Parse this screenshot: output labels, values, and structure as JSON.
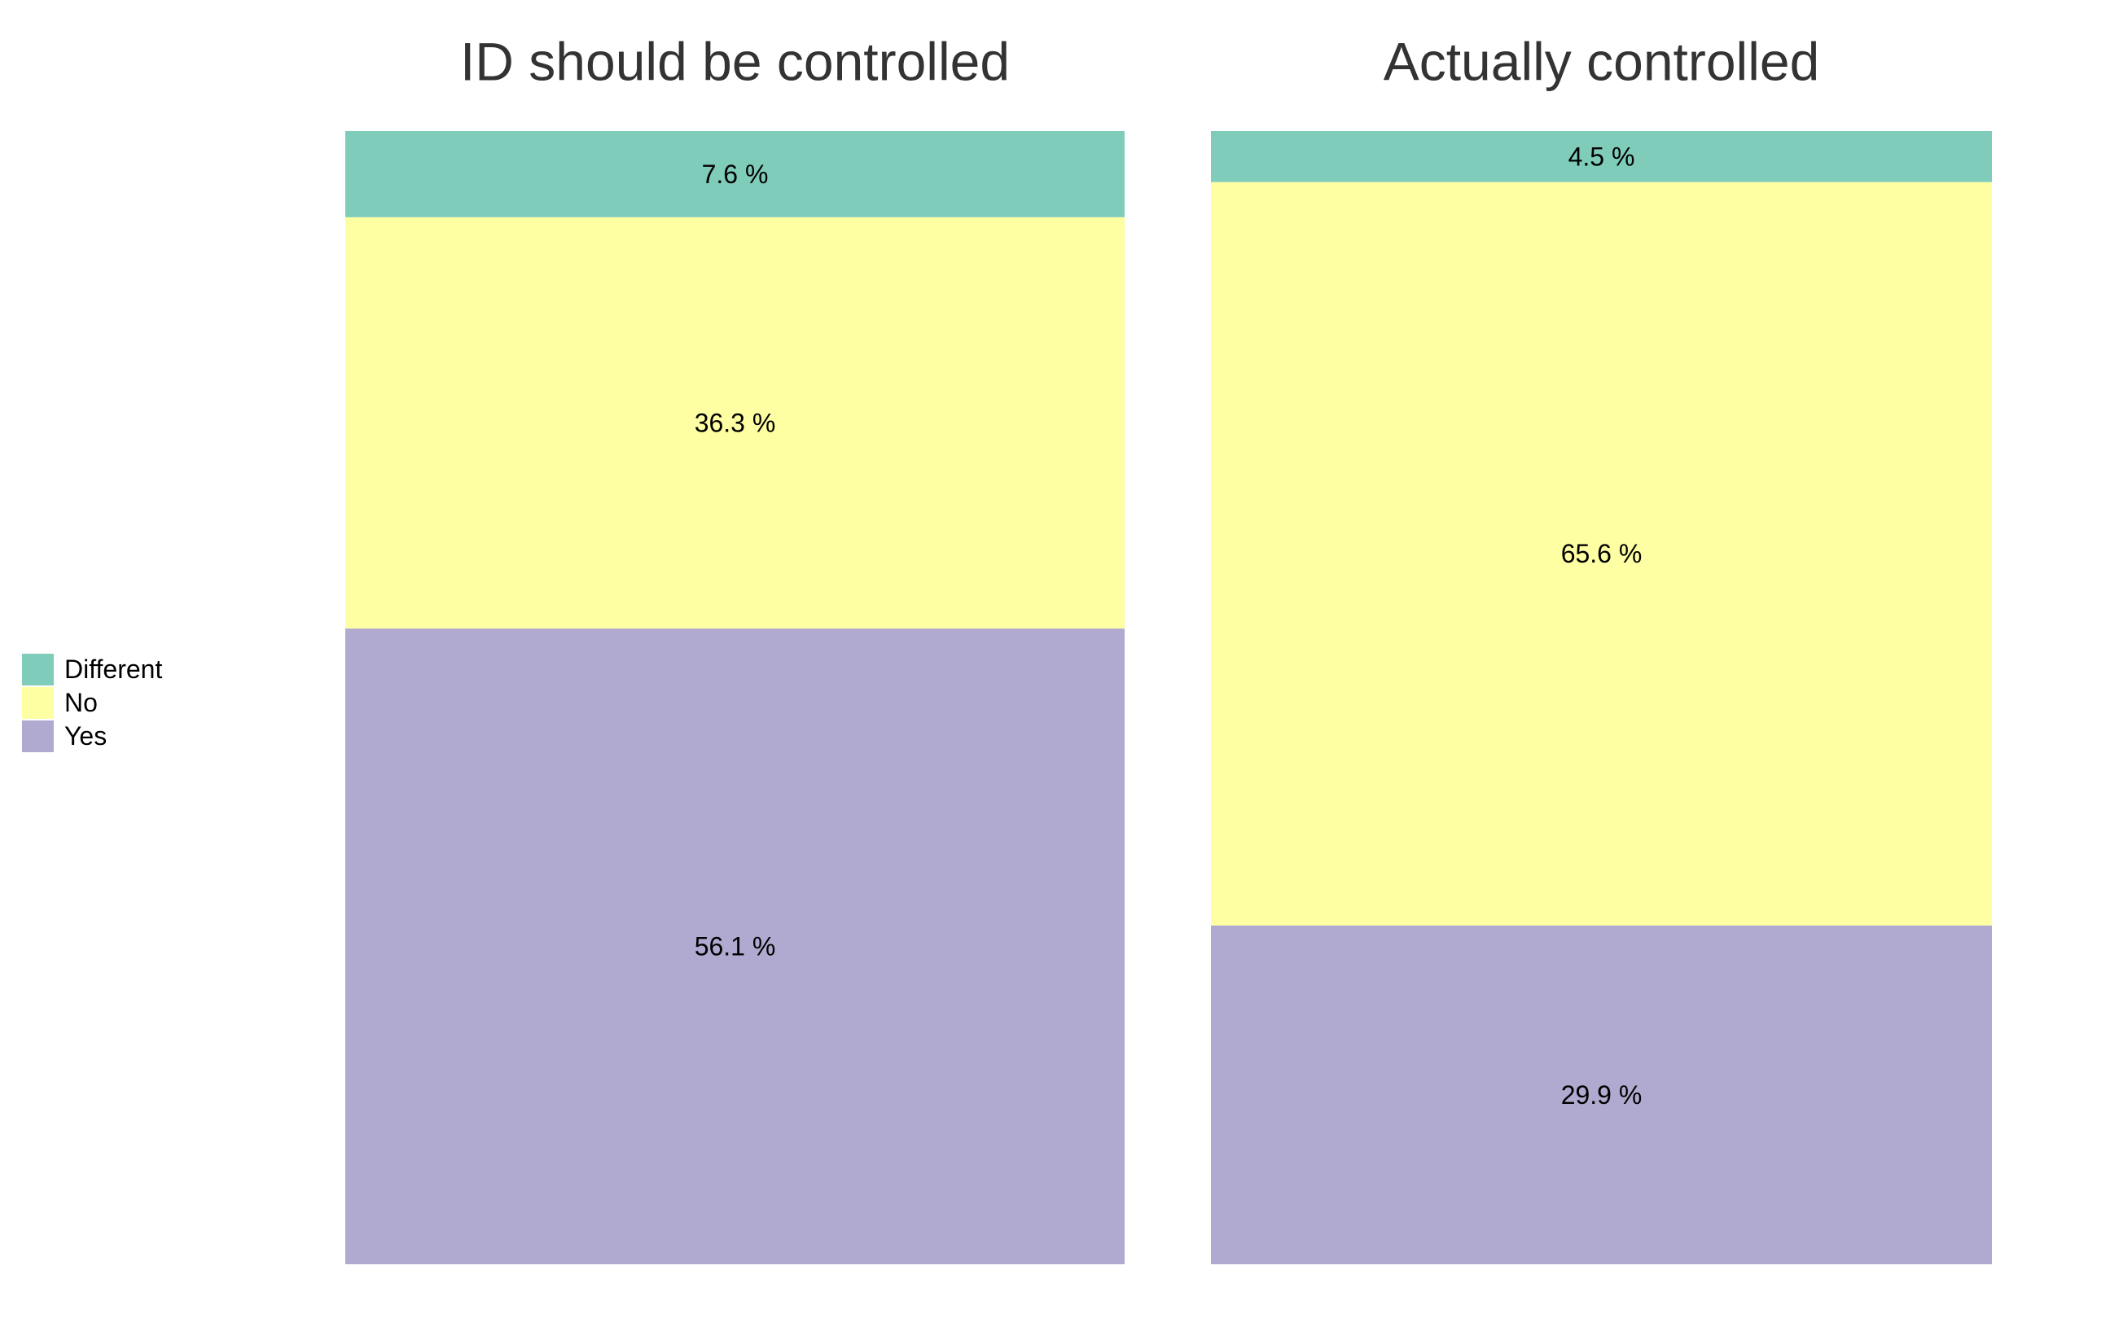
{
  "chart_data": {
    "type": "bar",
    "stacked": true,
    "normalized_percent": true,
    "categories": [
      "ID should be controlled",
      "Actually controlled"
    ],
    "series": [
      {
        "name": "Yes",
        "values": [
          56.1,
          29.9
        ],
        "color": "#b0aad0"
      },
      {
        "name": "No",
        "values": [
          36.3,
          65.6
        ],
        "color": "#fefea2"
      },
      {
        "name": "Different",
        "values": [
          7.6,
          4.5
        ],
        "color": "#7fccbb"
      }
    ],
    "value_labels": [
      [
        "56.1 %",
        "29.9 %"
      ],
      [
        "36.3 %",
        "65.6 %"
      ],
      [
        "7.6 %",
        "4.5 %"
      ]
    ],
    "legend": {
      "placement": "left",
      "entries": [
        "Different",
        "No",
        "Yes"
      ]
    },
    "ylim": [
      0,
      100
    ],
    "grid": false,
    "xlabel": "",
    "ylabel": ""
  }
}
